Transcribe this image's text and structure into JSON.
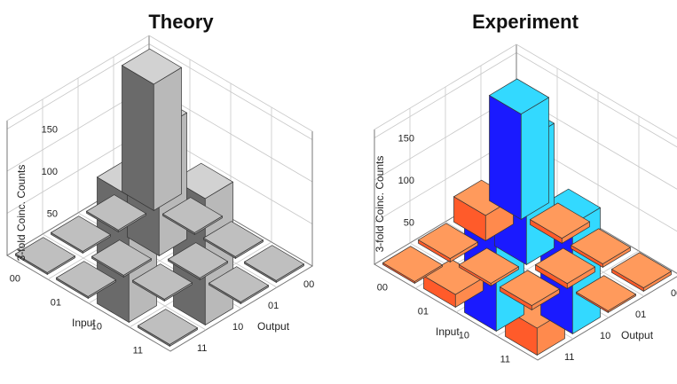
{
  "chart_data": [
    {
      "type": "bar3d",
      "title": "Theory",
      "zlabel": "3-fold Coinc. Counts",
      "xlabel": "Input",
      "ylabel": "Output",
      "input_labels": [
        "00",
        "01",
        "10",
        "11"
      ],
      "output_labels": [
        "00",
        "01",
        "10",
        "11"
      ],
      "z_ticks": [
        50,
        100,
        150
      ],
      "zlim": [
        0,
        160
      ],
      "matrix_rows_input_cols_output": [
        [
          150,
          0,
          0,
          0
        ],
        [
          0,
          150,
          0,
          0
        ],
        [
          0,
          0,
          0,
          150
        ],
        [
          0,
          0,
          150,
          0
        ]
      ],
      "colors": {
        "high_top": "#d2d2d2",
        "high_left": "#6a6a6a",
        "high_right": "#b9b9b9",
        "low_top": "#bfbfbf",
        "low_left": "#7c7c7c",
        "low_right": "#a2a2a2"
      }
    },
    {
      "type": "bar3d",
      "title": "Experiment",
      "zlabel": "3-fold Coinc. Counts",
      "xlabel": "Input",
      "ylabel": "Output",
      "input_labels": [
        "00",
        "01",
        "10",
        "11"
      ],
      "output_labels": [
        "00",
        "01",
        "10",
        "11"
      ],
      "z_ticks": [
        50,
        100,
        150
      ],
      "zlim": [
        0,
        160
      ],
      "matrix_rows_input_cols_output": [
        [
          125,
          30,
          4,
          2
        ],
        [
          6,
          148,
          3,
          15
        ],
        [
          4,
          6,
          5,
          125
        ],
        [
          4,
          2,
          130,
          32
        ]
      ],
      "colors": {
        "high_top": "#33d9ff",
        "high_left": "#1a1aff",
        "high_right": "#33d9ff",
        "low_top": "#ff9a5c",
        "low_left": "#ff5b2a",
        "low_right": "#ff8a4d"
      }
    }
  ]
}
